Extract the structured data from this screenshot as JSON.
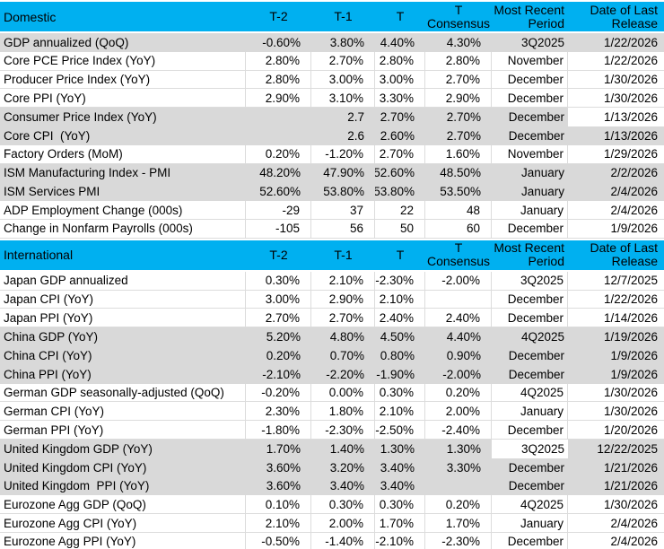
{
  "colors": {
    "section_header_bg": "#00B0F0",
    "alt_row_bg": "#D9D9D9",
    "gridline": "#DCDCDC",
    "text": "#000000"
  },
  "table": {
    "columns": [
      {
        "key": "metric",
        "lines": []
      },
      {
        "key": "t2",
        "lines": [
          "T-2"
        ]
      },
      {
        "key": "t1",
        "lines": [
          "T-1"
        ]
      },
      {
        "key": "t",
        "lines": [
          "T"
        ]
      },
      {
        "key": "consensus",
        "lines": [
          "T",
          "Consensus"
        ]
      },
      {
        "key": "period",
        "lines": [
          "Most Recent",
          "Period"
        ]
      },
      {
        "key": "date",
        "lines": [
          "Date of Last",
          "Release"
        ]
      }
    ],
    "sections": [
      {
        "name": "Domestic",
        "rows": [
          {
            "label": "GDP annualized (QoQ)",
            "values": [
              "-0.60%",
              "3.80%",
              "4.40%",
              "4.30%",
              "3Q2025",
              "1/22/2026"
            ],
            "shade": "gray",
            "white_cells": []
          },
          {
            "label": "Core PCE Price Index (YoY)",
            "values": [
              "2.80%",
              "2.70%",
              "2.80%",
              "2.80%",
              "November",
              "1/22/2026"
            ],
            "shade": "white",
            "white_cells": []
          },
          {
            "label": "Producer Price Index (YoY)",
            "values": [
              "2.80%",
              "3.00%",
              "3.00%",
              "2.70%",
              "December",
              "1/30/2026"
            ],
            "shade": "white",
            "white_cells": []
          },
          {
            "label": "Core PPI (YoY)",
            "values": [
              "2.90%",
              "3.10%",
              "3.30%",
              "2.90%",
              "December",
              "1/30/2026"
            ],
            "shade": "white",
            "white_cells": []
          },
          {
            "label": "Consumer Price Index (YoY)",
            "values": [
              "",
              "2.7",
              "2.70%",
              "2.70%",
              "December",
              "1/13/2026"
            ],
            "shade": "gray",
            "white_cells": [
              5
            ]
          },
          {
            "label": "Core CPI  (YoY)",
            "values": [
              "",
              "2.6",
              "2.60%",
              "2.70%",
              "December",
              "1/13/2026"
            ],
            "shade": "gray",
            "white_cells": []
          },
          {
            "label": "Factory Orders (MoM)",
            "values": [
              "0.20%",
              "-1.20%",
              "2.70%",
              "1.60%",
              "November",
              "1/29/2026"
            ],
            "shade": "white",
            "white_cells": []
          },
          {
            "label": "ISM Manufacturing Index - PMI",
            "values": [
              "48.20%",
              "47.90%",
              "52.60%",
              "48.50%",
              "January",
              "2/2/2026"
            ],
            "shade": "gray",
            "white_cells": []
          },
          {
            "label": "ISM Services PMI",
            "values": [
              "52.60%",
              "53.80%",
              "53.80%",
              "53.50%",
              "January",
              "2/4/2026"
            ],
            "shade": "gray",
            "white_cells": []
          },
          {
            "label": "ADP Employment Change (000s)",
            "values": [
              "-29",
              "37",
              "22",
              "48",
              "January",
              "2/4/2026"
            ],
            "shade": "white",
            "white_cells": []
          },
          {
            "label": "Change in Nonfarm Payrolls (000s)",
            "values": [
              "-105",
              "56",
              "50",
              "60",
              "December",
              "1/9/2026"
            ],
            "shade": "white",
            "white_cells": []
          }
        ]
      },
      {
        "name": "International",
        "rows": [
          {
            "label": "Japan GDP annualized",
            "values": [
              "0.30%",
              "2.10%",
              "-2.30%",
              "-2.00%",
              "3Q2025",
              "12/7/2025"
            ],
            "shade": "white",
            "white_cells": []
          },
          {
            "label": "Japan CPI (YoY)",
            "values": [
              "3.00%",
              "2.90%",
              "2.10%",
              "",
              "December",
              "1/22/2026"
            ],
            "shade": "white",
            "white_cells": []
          },
          {
            "label": "Japan PPI (YoY)",
            "values": [
              "2.70%",
              "2.70%",
              "2.40%",
              "2.40%",
              "December",
              "1/14/2026"
            ],
            "shade": "white",
            "white_cells": []
          },
          {
            "label": "China GDP (YoY)",
            "values": [
              "5.20%",
              "4.80%",
              "4.50%",
              "4.40%",
              "4Q2025",
              "1/19/2026"
            ],
            "shade": "gray",
            "white_cells": []
          },
          {
            "label": "China CPI (YoY)",
            "values": [
              "0.20%",
              "0.70%",
              "0.80%",
              "0.90%",
              "December",
              "1/9/2026"
            ],
            "shade": "gray",
            "white_cells": []
          },
          {
            "label": "China PPI (YoY)",
            "values": [
              "-2.10%",
              "-2.20%",
              "-1.90%",
              "-2.00%",
              "December",
              "1/9/2026"
            ],
            "shade": "gray",
            "white_cells": []
          },
          {
            "label": "German GDP seasonally-adjusted (QoQ)",
            "values": [
              "-0.20%",
              "0.00%",
              "0.30%",
              "0.20%",
              "4Q2025",
              "1/30/2026"
            ],
            "shade": "white",
            "white_cells": []
          },
          {
            "label": "German CPI (YoY)",
            "values": [
              "2.30%",
              "1.80%",
              "2.10%",
              "2.00%",
              "January",
              "1/30/2026"
            ],
            "shade": "white",
            "white_cells": []
          },
          {
            "label": "German PPI (YoY)",
            "values": [
              "-1.80%",
              "-2.30%",
              "-2.50%",
              "-2.40%",
              "December",
              "1/20/2026"
            ],
            "shade": "white",
            "white_cells": []
          },
          {
            "label": "United Kingdom GDP (YoY)",
            "values": [
              "1.70%",
              "1.40%",
              "1.30%",
              "1.30%",
              "3Q2025",
              "12/22/2025"
            ],
            "shade": "gray",
            "white_cells": [
              4
            ]
          },
          {
            "label": "United Kingdom CPI (YoY)",
            "values": [
              "3.60%",
              "3.20%",
              "3.40%",
              "3.30%",
              "December",
              "1/21/2026"
            ],
            "shade": "gray",
            "white_cells": []
          },
          {
            "label": "United Kingdom  PPI (YoY)",
            "values": [
              "3.60%",
              "3.40%",
              "3.40%",
              "",
              "December",
              "1/21/2026"
            ],
            "shade": "gray",
            "white_cells": []
          },
          {
            "label": "Eurozone Agg GDP (QoQ)",
            "values": [
              "0.10%",
              "0.30%",
              "0.30%",
              "0.20%",
              "4Q2025",
              "1/30/2026"
            ],
            "shade": "white",
            "white_cells": []
          },
          {
            "label": "Eurozone Agg CPI (YoY)",
            "values": [
              "2.10%",
              "2.00%",
              "1.70%",
              "1.70%",
              "January",
              "2/4/2026"
            ],
            "shade": "white",
            "white_cells": []
          },
          {
            "label": "Eurozone Agg PPI (YoY)",
            "values": [
              "-0.50%",
              "-1.40%",
              "-2.10%",
              "-2.30%",
              "December",
              "2/4/2026"
            ],
            "shade": "white",
            "white_cells": []
          }
        ]
      }
    ]
  }
}
